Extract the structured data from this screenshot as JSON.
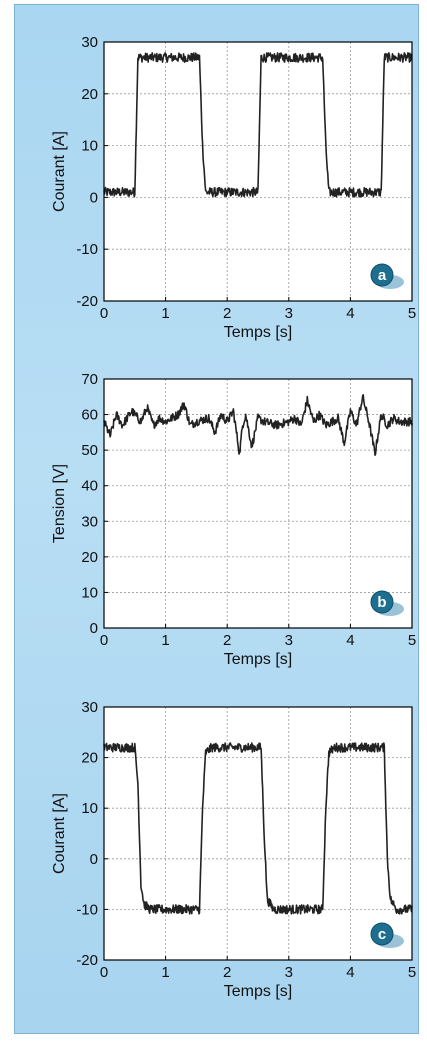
{
  "chart_data": [
    {
      "type": "line",
      "panel_label": "a",
      "xlabel": "Temps [s]",
      "ylabel": "Courant [A]",
      "xlim": [
        0,
        5
      ],
      "ylim": [
        -20,
        30
      ],
      "xticks": [
        0,
        1,
        2,
        3,
        4,
        5
      ],
      "yticks": [
        -20,
        -10,
        0,
        10,
        20,
        30
      ],
      "grid": true,
      "series": [
        {
          "x": [
            0,
            0.5,
            0.55,
            0.6,
            1.55,
            1.6,
            1.65,
            2.5,
            2.55,
            2.6,
            3.55,
            3.6,
            3.65,
            4.5,
            4.55,
            4.6,
            5
          ],
          "values": [
            1,
            1,
            27,
            27,
            27,
            10,
            1,
            1,
            27,
            27,
            27,
            10,
            1,
            1,
            27,
            27,
            27
          ]
        }
      ]
    },
    {
      "type": "line",
      "panel_label": "b",
      "xlabel": "Temps [s]",
      "ylabel": "Tension [V]",
      "xlim": [
        0,
        5
      ],
      "ylim": [
        0,
        70
      ],
      "xticks": [
        0,
        1,
        2,
        3,
        4,
        5
      ],
      "yticks": [
        0,
        10,
        20,
        30,
        40,
        50,
        60,
        70
      ],
      "grid": true,
      "series": [
        {
          "x": [
            0,
            0.1,
            0.2,
            0.3,
            0.45,
            0.6,
            0.7,
            0.8,
            0.9,
            1.0,
            1.2,
            1.3,
            1.4,
            1.5,
            1.7,
            1.8,
            1.9,
            2.0,
            2.1,
            2.2,
            2.25,
            2.3,
            2.4,
            2.5,
            2.6,
            2.8,
            3.0,
            3.1,
            3.2,
            3.3,
            3.4,
            3.5,
            3.6,
            3.8,
            3.9,
            4.0,
            4.1,
            4.2,
            4.3,
            4.4,
            4.5,
            4.6,
            4.7,
            4.8,
            5.0
          ],
          "values": [
            58,
            54,
            60,
            57,
            61,
            58,
            62,
            57,
            59,
            58,
            60,
            63,
            57,
            58,
            59,
            55,
            60,
            58,
            61,
            49,
            57,
            60,
            51,
            59,
            58,
            57,
            58,
            59,
            57,
            64,
            58,
            60,
            57,
            59,
            52,
            61,
            57,
            65,
            58,
            49,
            60,
            57,
            59,
            58,
            58
          ]
        }
      ]
    },
    {
      "type": "line",
      "panel_label": "c",
      "xlabel": "Temps [s]",
      "ylabel": "Courant [A]",
      "xlim": [
        0,
        5
      ],
      "ylim": [
        -20,
        30
      ],
      "xticks": [
        0,
        1,
        2,
        3,
        4,
        5
      ],
      "yticks": [
        -20,
        -10,
        0,
        10,
        20,
        30
      ],
      "grid": true,
      "series": [
        {
          "x": [
            0,
            0.5,
            0.55,
            0.6,
            0.65,
            0.75,
            1.55,
            1.6,
            1.65,
            1.75,
            2.55,
            2.6,
            2.65,
            2.75,
            3.55,
            3.6,
            3.65,
            3.75,
            4.55,
            4.6,
            4.65,
            4.75,
            5
          ],
          "values": [
            22,
            22,
            15,
            -5,
            -9,
            -10,
            -10,
            10,
            21,
            22,
            22,
            5,
            -8,
            -10,
            -10,
            10,
            21,
            22,
            22,
            0,
            -8,
            -10,
            -10
          ]
        }
      ]
    }
  ],
  "colors": {
    "panel_bg": "#a9d6f1",
    "plot_bg": "#ffffff",
    "line": "#222222",
    "grid": "#9a9a9a",
    "badge": "#1d6e8f"
  }
}
